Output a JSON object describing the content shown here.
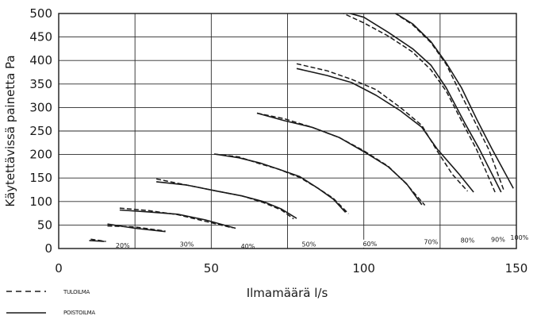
{
  "chart_data": {
    "type": "line",
    "title": "",
    "xlabel": "Ilmamäärä l/s",
    "ylabel": "Käytettävissä painetta Pa",
    "xlim": [
      0,
      150
    ],
    "ylim": [
      0,
      500
    ],
    "x_ticks": [
      "0",
      "50",
      "100",
      "150"
    ],
    "y_ticks": [
      "0",
      "50",
      "100",
      "150",
      "200",
      "250",
      "300",
      "350",
      "400",
      "450",
      "500"
    ],
    "grid": true,
    "legend": [
      {
        "label": "TULOILMA",
        "style": "dashed"
      },
      {
        "label": "POISTOILMA",
        "style": "solid"
      }
    ],
    "series": [
      {
        "label": "20%",
        "tuloilma": [
          [
            10.5,
            20
          ],
          [
            15.5,
            15
          ]
        ],
        "poistoilma": [
          [
            10,
            17
          ],
          [
            15,
            15
          ]
        ]
      },
      {
        "label": "30%",
        "tuloilma": [
          [
            16,
            48
          ],
          [
            25,
            46
          ],
          [
            35,
            37
          ]
        ],
        "poistoilma": [
          [
            16,
            52
          ],
          [
            25,
            43
          ],
          [
            35,
            36
          ]
        ]
      },
      {
        "label": "40%",
        "tuloilma": [
          [
            20,
            86
          ],
          [
            29,
            81
          ],
          [
            39,
            72
          ],
          [
            48,
            58
          ],
          [
            57,
            44
          ]
        ],
        "poistoilma": [
          [
            20,
            82
          ],
          [
            29,
            78
          ],
          [
            39,
            73
          ],
          [
            48,
            61
          ],
          [
            58,
            43
          ]
        ]
      },
      {
        "label": "50%",
        "tuloilma": [
          [
            32,
            148
          ],
          [
            42,
            135
          ],
          [
            52,
            122
          ],
          [
            60,
            112
          ],
          [
            67,
            98
          ],
          [
            73,
            82
          ],
          [
            77,
            63
          ]
        ],
        "poistoilma": [
          [
            32,
            142
          ],
          [
            42,
            135
          ],
          [
            52,
            122
          ],
          [
            60,
            112
          ],
          [
            67,
            100
          ],
          [
            73,
            84
          ],
          [
            78,
            64
          ]
        ]
      },
      {
        "label": "60%",
        "tuloilma": [
          [
            51,
            201
          ],
          [
            59,
            195
          ],
          [
            66,
            180
          ],
          [
            72,
            169
          ],
          [
            79,
            151
          ],
          [
            85,
            128
          ],
          [
            90,
            107
          ],
          [
            95,
            74
          ]
        ],
        "poistoilma": [
          [
            51,
            201
          ],
          [
            59,
            193
          ],
          [
            66,
            182
          ],
          [
            72,
            169
          ],
          [
            79,
            153
          ],
          [
            85,
            128
          ],
          [
            90,
            105
          ],
          [
            94,
            77
          ]
        ]
      },
      {
        "label": "70%",
        "tuloilma": [
          [
            65,
            288
          ],
          [
            74,
            276
          ],
          [
            83,
            258
          ],
          [
            92,
            236
          ],
          [
            100,
            208
          ],
          [
            108,
            175
          ],
          [
            114,
            137
          ],
          [
            120,
            92
          ]
        ],
        "poistoilma": [
          [
            65,
            288
          ],
          [
            74,
            272
          ],
          [
            83,
            258
          ],
          [
            92,
            236
          ],
          [
            100,
            206
          ],
          [
            108,
            174
          ],
          [
            114,
            138
          ],
          [
            119,
            93
          ]
        ]
      },
      {
        "label": "80%",
        "tuloilma": [
          [
            78,
            393
          ],
          [
            88,
            378
          ],
          [
            96,
            360
          ],
          [
            104,
            338
          ],
          [
            112,
            300
          ],
          [
            119,
            262
          ],
          [
            124,
            208
          ],
          [
            129,
            158
          ],
          [
            134,
            122
          ]
        ],
        "poistoilma": [
          [
            78,
            383
          ],
          [
            88,
            368
          ],
          [
            96,
            353
          ],
          [
            104,
            326
          ],
          [
            112,
            293
          ],
          [
            119,
            258
          ],
          [
            124,
            212
          ],
          [
            131,
            160
          ],
          [
            136,
            120
          ]
        ]
      },
      {
        "label": "90%",
        "tuloilma": [
          [
            90,
            510
          ],
          [
            100,
            480
          ],
          [
            108,
            452
          ],
          [
            116,
            418
          ],
          [
            122,
            380
          ],
          [
            127,
            335
          ],
          [
            132,
            272
          ],
          [
            137,
            210
          ],
          [
            143,
            120
          ]
        ],
        "poistoilma": [
          [
            90,
            510
          ],
          [
            100,
            492
          ],
          [
            108,
            460
          ],
          [
            116,
            425
          ],
          [
            122,
            390
          ],
          [
            127,
            342
          ],
          [
            133,
            268
          ],
          [
            138,
            210
          ],
          [
            145,
            120
          ]
        ]
      },
      {
        "label": "100%",
        "tuloilma": [
          [
            108,
            510
          ],
          [
            116,
            476
          ],
          [
            122,
            438
          ],
          [
            127,
            392
          ],
          [
            132,
            326
          ],
          [
            136,
            275
          ],
          [
            141,
            210
          ],
          [
            146,
            122
          ]
        ],
        "poistoilma": [
          [
            108,
            510
          ],
          [
            116,
            478
          ],
          [
            122,
            440
          ],
          [
            127,
            395
          ],
          [
            132,
            342
          ],
          [
            137,
            275
          ],
          [
            142,
            212
          ],
          [
            149,
            128
          ]
        ]
      }
    ]
  }
}
